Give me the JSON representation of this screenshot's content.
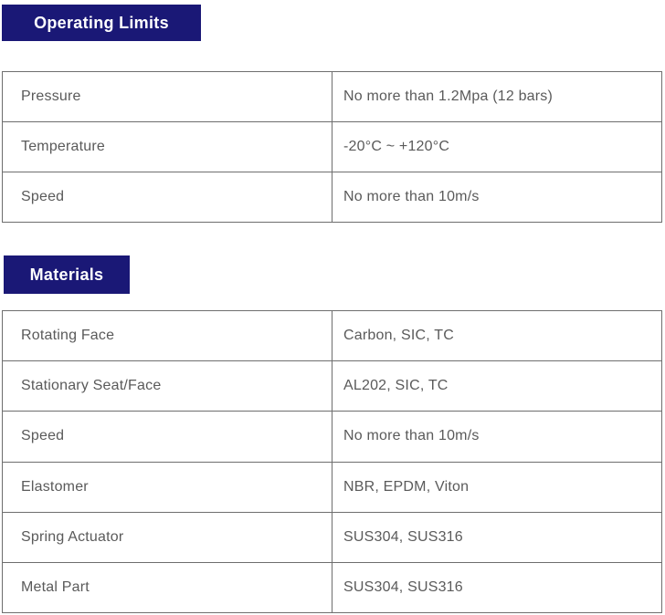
{
  "colors": {
    "badge_background": "#1a1876",
    "badge_text": "#ffffff",
    "table_border": "#6e6e6e",
    "cell_text": "#5a5a5a",
    "page_background": "#ffffff"
  },
  "sections": [
    {
      "title": "Operating Limits",
      "rows": [
        {
          "label": "Pressure",
          "value": "No more than 1.2Mpa (12 bars)"
        },
        {
          "label": "Temperature",
          "value": "-20°C ~ +120°C"
        },
        {
          "label": "Speed",
          "value": "No more than 10m/s"
        }
      ]
    },
    {
      "title": "Materials",
      "rows": [
        {
          "label": "Rotating Face",
          "value": "Carbon, SIC, TC"
        },
        {
          "label": "Stationary Seat/Face",
          "value": "AL202, SIC, TC"
        },
        {
          "label": "Speed",
          "value": "No more than 10m/s"
        },
        {
          "label": "Elastomer",
          "value": "NBR, EPDM, Viton"
        },
        {
          "label": "Spring Actuator",
          "value": "SUS304, SUS316"
        },
        {
          "label": "Metal Part",
          "value": "SUS304, SUS316"
        }
      ]
    }
  ]
}
